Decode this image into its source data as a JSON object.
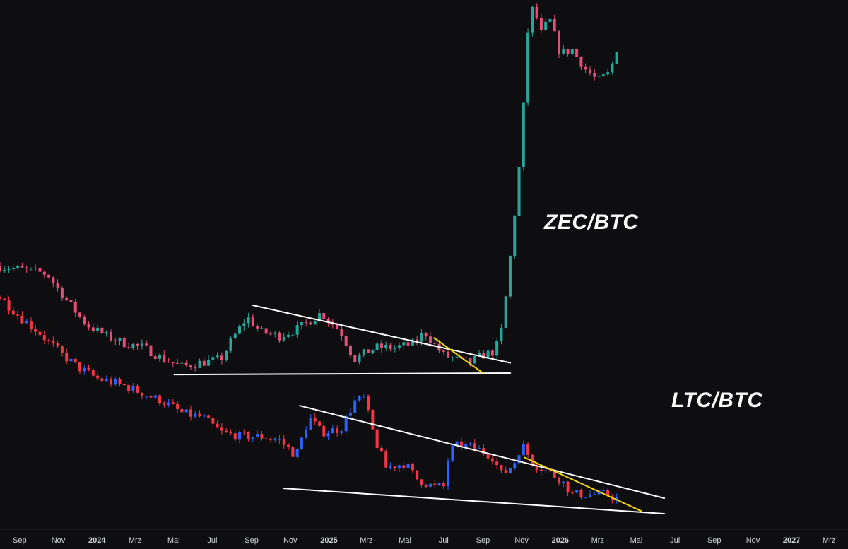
{
  "chart_data": {
    "type": "candlestick",
    "colors": {
      "background": "#0e0e10",
      "zec_up": "#26a69a",
      "zec_down": "#e84c78",
      "ltc_up": "#2962ff",
      "ltc_down": "#f23645",
      "trendline_main": "#ffffff",
      "trendline_inner": "#f5d90a",
      "axis_text": "#d1d4dc"
    },
    "x_axis": {
      "range": [
        "2023-08-01",
        "2027-03-31"
      ],
      "ticks": [
        {
          "label": "Sep",
          "date": "2023-09-01",
          "bold": false
        },
        {
          "label": "Nov",
          "date": "2023-11-01",
          "bold": false
        },
        {
          "label": "2024",
          "date": "2024-01-01",
          "bold": true
        },
        {
          "label": "Mrz",
          "date": "2024-03-01",
          "bold": false
        },
        {
          "label": "Mai",
          "date": "2024-05-01",
          "bold": false
        },
        {
          "label": "Jul",
          "date": "2024-07-01",
          "bold": false
        },
        {
          "label": "Sep",
          "date": "2024-09-01",
          "bold": false
        },
        {
          "label": "Nov",
          "date": "2024-11-01",
          "bold": false
        },
        {
          "label": "2025",
          "date": "2025-01-01",
          "bold": true
        },
        {
          "label": "Mrz",
          "date": "2025-03-01",
          "bold": false
        },
        {
          "label": "Mai",
          "date": "2025-05-01",
          "bold": false
        },
        {
          "label": "Jul",
          "date": "2025-07-01",
          "bold": false
        },
        {
          "label": "Sep",
          "date": "2025-09-01",
          "bold": false
        },
        {
          "label": "Nov",
          "date": "2025-11-01",
          "bold": false
        },
        {
          "label": "2026",
          "date": "2026-01-01",
          "bold": true
        },
        {
          "label": "Mrz",
          "date": "2026-03-01",
          "bold": false
        },
        {
          "label": "Mai",
          "date": "2026-05-01",
          "bold": false
        },
        {
          "label": "Jul",
          "date": "2026-07-01",
          "bold": false
        },
        {
          "label": "Sep",
          "date": "2026-09-01",
          "bold": false
        },
        {
          "label": "Nov",
          "date": "2026-11-01",
          "bold": false
        },
        {
          "label": "2027",
          "date": "2027-01-01",
          "bold": true
        },
        {
          "label": "Mrz",
          "date": "2027-03-01",
          "bold": false
        }
      ]
    },
    "series": [
      {
        "name": "ZEC/BTC",
        "price_path": [
          [
            "2023-08-01",
            0.96
          ],
          [
            "2023-09-15",
            0.955
          ],
          [
            "2023-10-15",
            0.95
          ],
          [
            "2023-11-15",
            0.915
          ],
          [
            "2023-12-15",
            0.885
          ],
          [
            "2024-01-15",
            0.87
          ],
          [
            "2024-02-15",
            0.86
          ],
          [
            "2024-03-15",
            0.855
          ],
          [
            "2024-04-15",
            0.84
          ],
          [
            "2024-05-15",
            0.83
          ],
          [
            "2024-06-10",
            0.835
          ],
          [
            "2024-07-15",
            0.84
          ],
          [
            "2024-08-01",
            0.865
          ],
          [
            "2024-08-25",
            0.895
          ],
          [
            "2024-09-15",
            0.875
          ],
          [
            "2024-10-15",
            0.87
          ],
          [
            "2024-11-15",
            0.88
          ],
          [
            "2024-12-20",
            0.9
          ],
          [
            "2025-01-20",
            0.875
          ],
          [
            "2025-02-10",
            0.84
          ],
          [
            "2025-03-15",
            0.855
          ],
          [
            "2025-04-15",
            0.855
          ],
          [
            "2025-05-15",
            0.86
          ],
          [
            "2025-06-01",
            0.875
          ],
          [
            "2025-06-15",
            0.86
          ],
          [
            "2025-07-01",
            0.845
          ],
          [
            "2025-07-20",
            0.84
          ],
          [
            "2025-08-10",
            0.835
          ],
          [
            "2025-09-01",
            0.845
          ],
          [
            "2025-09-20",
            0.85
          ],
          [
            "2025-10-01",
            0.88
          ],
          [
            "2025-10-10",
            0.94
          ],
          [
            "2025-10-20",
            1.02
          ],
          [
            "2025-11-01",
            1.12
          ],
          [
            "2025-11-10",
            1.26
          ],
          [
            "2025-11-20",
            1.3
          ],
          [
            "2025-12-01",
            1.26
          ],
          [
            "2025-12-15",
            1.28
          ],
          [
            "2026-01-01",
            1.235
          ],
          [
            "2026-01-20",
            1.24
          ],
          [
            "2026-02-10",
            1.215
          ],
          [
            "2026-03-01",
            1.2
          ],
          [
            "2026-03-20",
            1.21
          ],
          [
            "2026-04-01",
            1.245
          ]
        ]
      },
      {
        "name": "LTC/BTC",
        "price_path": [
          [
            "2023-08-01",
            0.92
          ],
          [
            "2023-09-01",
            0.895
          ],
          [
            "2023-10-01",
            0.875
          ],
          [
            "2023-11-01",
            0.85
          ],
          [
            "2023-12-01",
            0.83
          ],
          [
            "2024-01-01",
            0.815
          ],
          [
            "2024-02-15",
            0.805
          ],
          [
            "2024-03-15",
            0.795
          ],
          [
            "2024-04-15",
            0.785
          ],
          [
            "2024-05-15",
            0.77
          ],
          [
            "2024-06-15",
            0.765
          ],
          [
            "2024-07-15",
            0.745
          ],
          [
            "2024-08-15",
            0.74
          ],
          [
            "2024-09-15",
            0.74
          ],
          [
            "2024-10-15",
            0.735
          ],
          [
            "2024-11-10",
            0.715
          ],
          [
            "2024-12-01",
            0.765
          ],
          [
            "2024-12-20",
            0.745
          ],
          [
            "2025-01-20",
            0.75
          ],
          [
            "2025-02-10",
            0.785
          ],
          [
            "2025-02-25",
            0.79
          ],
          [
            "2025-03-15",
            0.735
          ],
          [
            "2025-04-01",
            0.7
          ],
          [
            "2025-05-01",
            0.705
          ],
          [
            "2025-05-20",
            0.685
          ],
          [
            "2025-06-15",
            0.675
          ],
          [
            "2025-07-01",
            0.675
          ],
          [
            "2025-07-10",
            0.72
          ],
          [
            "2025-07-25",
            0.73
          ],
          [
            "2025-08-20",
            0.725
          ],
          [
            "2025-09-15",
            0.715
          ],
          [
            "2025-10-01",
            0.69
          ],
          [
            "2025-10-20",
            0.705
          ],
          [
            "2025-11-01",
            0.73
          ],
          [
            "2025-11-20",
            0.705
          ],
          [
            "2025-12-10",
            0.695
          ],
          [
            "2026-01-01",
            0.685
          ],
          [
            "2026-01-20",
            0.665
          ],
          [
            "2026-02-15",
            0.665
          ],
          [
            "2026-03-15",
            0.665
          ],
          [
            "2026-04-01",
            0.66
          ]
        ]
      }
    ],
    "drawings": [
      {
        "kind": "line",
        "color": "white",
        "from": [
          "2024-09-01",
          0.91
        ],
        "to": [
          "2025-10-15",
          0.835
        ]
      },
      {
        "kind": "line",
        "color": "white",
        "from": [
          "2024-05-01",
          0.82
        ],
        "to": [
          "2025-10-15",
          0.822
        ]
      },
      {
        "kind": "line",
        "color": "yellow",
        "from": [
          "2025-06-15",
          0.868
        ],
        "to": [
          "2025-09-01",
          0.822
        ]
      },
      {
        "kind": "line",
        "color": "white",
        "from": [
          "2024-11-15",
          0.78
        ],
        "to": [
          "2026-06-15",
          0.66
        ]
      },
      {
        "kind": "line",
        "color": "white",
        "from": [
          "2024-10-20",
          0.673
        ],
        "to": [
          "2026-06-15",
          0.64
        ]
      },
      {
        "kind": "line",
        "color": "yellow",
        "from": [
          "2025-11-05",
          0.713
        ],
        "to": [
          "2026-05-10",
          0.643
        ]
      }
    ],
    "annotations": [
      {
        "text": "ZEC/BTC"
      },
      {
        "text": "LTC/BTC"
      }
    ],
    "grid": false,
    "legend": "none"
  }
}
